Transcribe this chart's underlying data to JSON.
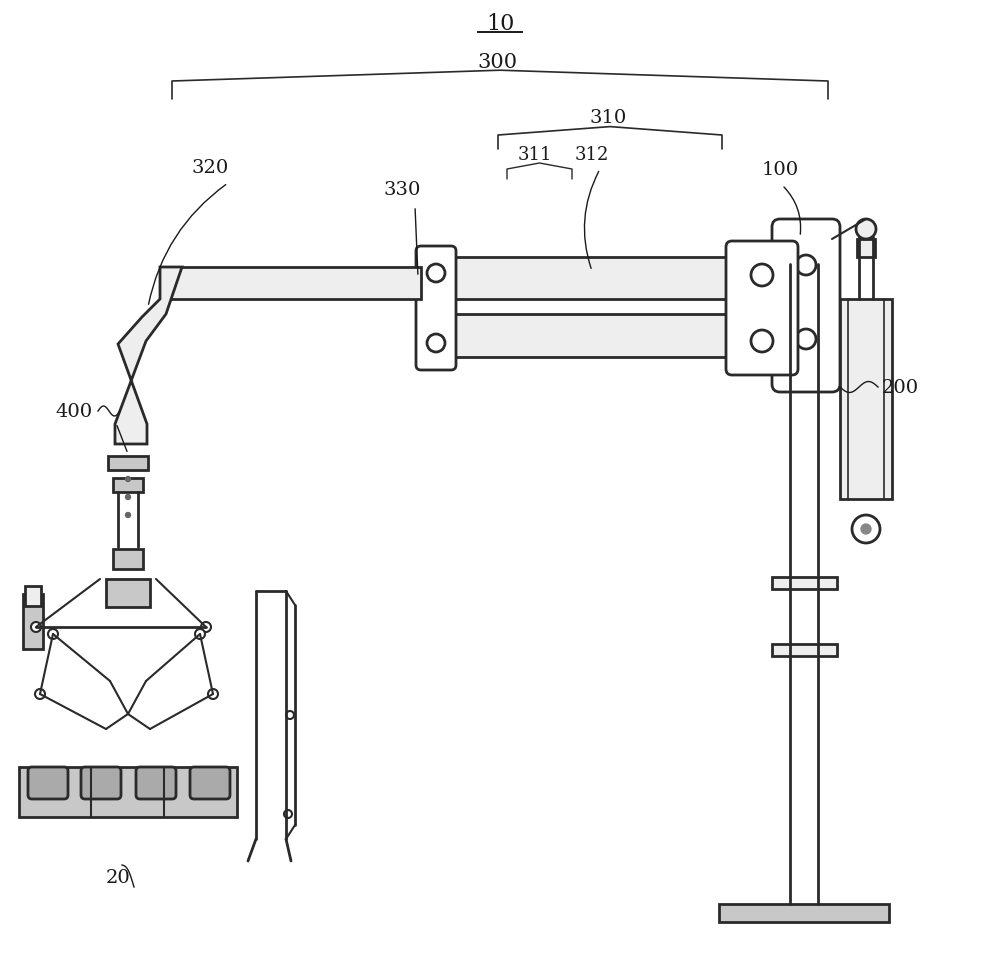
{
  "bg_color": "#ffffff",
  "line_color": "#2a2a2a",
  "gray_fill": "#d8d8d8",
  "light_gray": "#eeeeee",
  "med_gray": "#c8c8c8"
}
